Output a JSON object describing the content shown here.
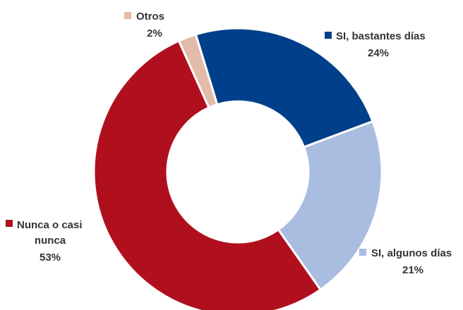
{
  "chart_data": {
    "type": "pie",
    "donut": true,
    "legend": "none",
    "slices": [
      {
        "label": "SI, bastantes días",
        "label_lines": [
          "SI, bastantes días"
        ],
        "value": 24,
        "pct_label": "24%",
        "color": "#003f8a"
      },
      {
        "label": "SI, algunos días",
        "label_lines": [
          "SI, algunos días"
        ],
        "value": 21,
        "pct_label": "21%",
        "color": "#a8bde0"
      },
      {
        "label": "Nunca o casi nunca",
        "label_lines": [
          "Nunca o casi",
          "nunca"
        ],
        "value": 53,
        "pct_label": "53%",
        "color": "#b0101d"
      },
      {
        "label": "Otros",
        "label_lines": [
          "Otros"
        ],
        "value": 2,
        "pct_label": "2%",
        "color": "#e2bca9"
      }
    ]
  }
}
